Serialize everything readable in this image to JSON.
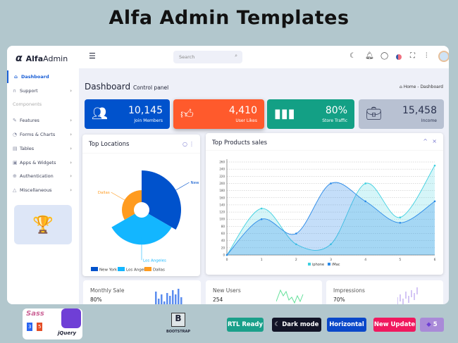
{
  "page_title": "Alfa Admin Templates",
  "app": {
    "logo_alpha": "α",
    "logo_bold": "Alfa",
    "logo_light": "Admin"
  },
  "header": {
    "search_placeholder": "Search",
    "icons": [
      "menu-icon",
      "search-icon",
      "moon-icon",
      "bell-icon",
      "chat-icon",
      "us-flag-icon",
      "fullscreen-icon",
      "sliders-icon",
      "avatar"
    ]
  },
  "sidebar": {
    "items": [
      {
        "label": "Dashboard",
        "icon": "home-icon",
        "active": true
      },
      {
        "label": "Support",
        "icon": "headset-icon"
      },
      {
        "label": "Features",
        "icon": "edit-icon"
      },
      {
        "label": "Forms & Charts",
        "icon": "chart-pie-icon"
      },
      {
        "label": "Tables",
        "icon": "table-icon"
      },
      {
        "label": "Apps & Widgets",
        "icon": "apps-icon"
      },
      {
        "label": "Authentication",
        "icon": "lock-icon"
      },
      {
        "label": "Miscellaneous",
        "icon": "warning-icon"
      }
    ],
    "section_label": "Components"
  },
  "page": {
    "heading": "Dashboard",
    "subheading": "Control panel",
    "breadcrumb": [
      "Home",
      "Dashboard"
    ]
  },
  "stats": [
    {
      "value": "10,145",
      "label": "Join Members",
      "color": "#0052cc",
      "icon": "users-icon"
    },
    {
      "value": "4,410",
      "label": "User Likes",
      "color": "#ff5a2c",
      "icon": "thumbs-up-icon"
    },
    {
      "value": "80%",
      "label": "Store Traffic",
      "color": "#13a085",
      "icon": "bar-chart-icon"
    },
    {
      "value": "15,458",
      "label": "Income",
      "color": "#b8c1d2",
      "icon": "briefcase-icon"
    }
  ],
  "locations": {
    "title": "Top Locations"
  },
  "sales": {
    "title": "Top Products sales"
  },
  "mini": [
    {
      "label": "Monthly Sale",
      "value": "80%"
    },
    {
      "label": "New Users",
      "value": "254"
    },
    {
      "label": "Impressions",
      "value": "70%"
    }
  ],
  "footer": {
    "badges": [
      "RTL Ready",
      "Dark mode",
      "Horizontal",
      "New Update",
      "5"
    ],
    "bootstrap_label": "BOOTSTRAP",
    "tech": [
      "Sass",
      "CSS3",
      "HTML5",
      "jQuery"
    ]
  },
  "chart_data": [
    {
      "type": "polar-area",
      "title": "Top Locations",
      "categories": [
        "New York",
        "Los Angeles",
        "Dallas"
      ],
      "values": [
        100,
        88,
        50
      ],
      "colors": [
        "#0052cc",
        "#13b6ff",
        "#ff9b1f"
      ],
      "legend": "bottom"
    },
    {
      "type": "area",
      "title": "Top Products sales",
      "x": [
        0,
        1,
        2,
        3,
        4,
        5,
        6
      ],
      "series": [
        {
          "name": "iphone",
          "values": [
            0,
            130,
            30,
            30,
            200,
            105,
            250
          ],
          "color": "#3fd0e0"
        },
        {
          "name": "iMac",
          "values": [
            0,
            100,
            60,
            200,
            150,
            90,
            150
          ],
          "color": "#2a8ae8"
        }
      ],
      "ylim": [
        0,
        260
      ],
      "yticks": [
        0,
        20,
        40,
        60,
        80,
        100,
        120,
        140,
        160,
        180,
        200,
        220,
        240,
        260
      ],
      "grid": true,
      "legend": "bottom"
    }
  ]
}
